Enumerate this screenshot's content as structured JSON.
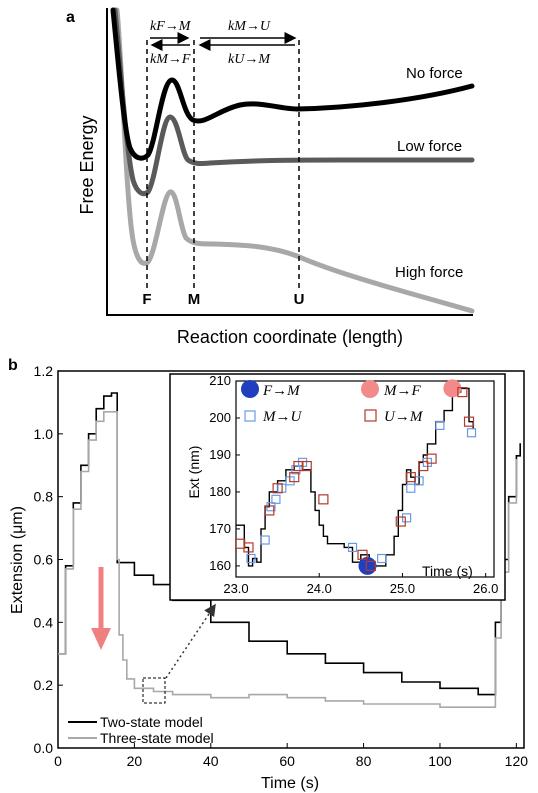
{
  "panel_a": {
    "letter": "a",
    "ylabel": "Free Energy",
    "xlabel": "Reaction coordinate (length)",
    "states": [
      "F",
      "M",
      "U"
    ],
    "rates": {
      "kFM": "kF→M",
      "kMF": "kM→F",
      "kMU": "kM→U",
      "kUM": "kU→M"
    },
    "curves": [
      "No force",
      "Low force",
      "High force"
    ],
    "colors": {
      "no_force": "#000000",
      "low_force": "#5a5a5a",
      "high_force": "#a8a8a8"
    }
  },
  "panel_b": {
    "letter": "b",
    "legend": [
      "Two-state model",
      "Three-state model"
    ],
    "inset_legend": [
      "F→M",
      "M→F",
      "M→U",
      "U→M"
    ],
    "colors": {
      "two_state": "#000000",
      "three_state": "#a8a8a8",
      "arrow": "#f08080",
      "FM": "#1f3fbf",
      "MF": "#f28a8a",
      "MU": "#6a9ae6",
      "UM": "#b23a2a"
    }
  },
  "chart_data": [
    {
      "type": "line",
      "xlabel": "Time (s)",
      "ylabel": "Extension (μm)",
      "xlim": [
        0,
        122
      ],
      "ylim": [
        0,
        1.2
      ],
      "xticks": [
        "0",
        "20",
        "40",
        "60",
        "80",
        "100",
        "120"
      ],
      "yticks": [
        "0.0",
        "0.2",
        "0.4",
        "0.6",
        "0.8",
        "1.0",
        "1.2"
      ],
      "series": [
        {
          "name": "Two-state model",
          "x": [
            0,
            2,
            4,
            6,
            8,
            10,
            12,
            14,
            15,
            15.5,
            20,
            25,
            30,
            40,
            50,
            60,
            70,
            80,
            90,
            100,
            110,
            114,
            114.5,
            116,
            118,
            120,
            121
          ],
          "y": [
            0.3,
            0.58,
            0.78,
            0.9,
            1.0,
            1.08,
            1.12,
            1.13,
            1.13,
            0.59,
            0.55,
            0.52,
            0.47,
            0.4,
            0.34,
            0.3,
            0.27,
            0.24,
            0.21,
            0.19,
            0.17,
            0.17,
            0.4,
            0.6,
            0.8,
            0.93,
            0.97
          ]
        },
        {
          "name": "Three-state model",
          "x": [
            0,
            2,
            4,
            6,
            8,
            10,
            12,
            14,
            15,
            15.5,
            16,
            17,
            18,
            20,
            25,
            30,
            40,
            50,
            60,
            70,
            80,
            90,
            100,
            110,
            114,
            114.5,
            116,
            118,
            120
          ],
          "y": [
            0.3,
            0.57,
            0.76,
            0.88,
            0.98,
            1.04,
            1.07,
            1.07,
            1.07,
            0.6,
            0.36,
            0.28,
            0.22,
            0.19,
            0.18,
            0.17,
            0.16,
            0.17,
            0.16,
            0.15,
            0.14,
            0.14,
            0.13,
            0.13,
            0.13,
            0.35,
            0.56,
            0.78,
            0.92
          ]
        }
      ]
    },
    {
      "type": "scatter",
      "xlabel": "Time (s)",
      "ylabel": "Ext (nm)",
      "xlim": [
        23.0,
        26.1
      ],
      "ylim": [
        157,
        210
      ],
      "xticks": [
        "23.0",
        "24.0",
        "25.0",
        "26.0"
      ],
      "yticks": [
        "160",
        "170",
        "180",
        "190",
        "200",
        "210"
      ],
      "trace": {
        "x": [
          23.0,
          23.08,
          23.1,
          23.15,
          23.2,
          23.25,
          23.3,
          23.35,
          23.4,
          23.5,
          23.6,
          23.7,
          23.8,
          23.9,
          23.95,
          24.0,
          24.05,
          24.1,
          24.2,
          24.3,
          24.4,
          24.5,
          24.6,
          24.7,
          24.8,
          24.9,
          24.95,
          25.0,
          25.05,
          25.1,
          25.15,
          25.2,
          25.25,
          25.3,
          25.4,
          25.5,
          25.6,
          25.7,
          25.8,
          25.85
        ],
        "y": [
          171,
          171,
          165,
          160,
          162,
          161,
          170,
          176,
          180,
          183,
          186,
          187,
          186,
          180,
          175,
          171,
          168,
          166,
          166,
          165,
          161,
          163,
          160,
          160,
          163,
          168,
          175,
          182,
          186,
          184,
          182,
          188,
          190,
          193,
          199,
          202,
          207,
          208,
          199,
          197
        ]
      },
      "series": [
        {
          "name": "F→M",
          "x": [
            24.58
          ],
          "y": [
            160
          ]
        },
        {
          "name": "M→F",
          "x": [
            25.6
          ],
          "y": [
            208
          ]
        },
        {
          "name": "M→U",
          "x": [
            23.18,
            23.35,
            23.42,
            23.48,
            23.55,
            23.65,
            23.72,
            23.8,
            24.4,
            24.75,
            25.05,
            25.1,
            25.2,
            25.3,
            25.45,
            25.83
          ],
          "y": [
            162,
            167,
            176,
            178,
            181,
            183,
            186,
            188,
            165,
            162,
            173,
            181,
            183,
            188,
            198,
            196
          ]
        },
        {
          "name": "U→M",
          "x": [
            23.05,
            23.15,
            23.4,
            23.5,
            23.7,
            23.75,
            23.85,
            24.05,
            24.52,
            24.62,
            24.98,
            25.1,
            25.25,
            25.35,
            25.72,
            25.8
          ],
          "y": [
            166,
            165,
            175,
            181,
            184,
            187,
            187,
            178,
            163,
            160,
            172,
            184,
            187,
            189,
            207,
            199
          ]
        }
      ]
    }
  ]
}
